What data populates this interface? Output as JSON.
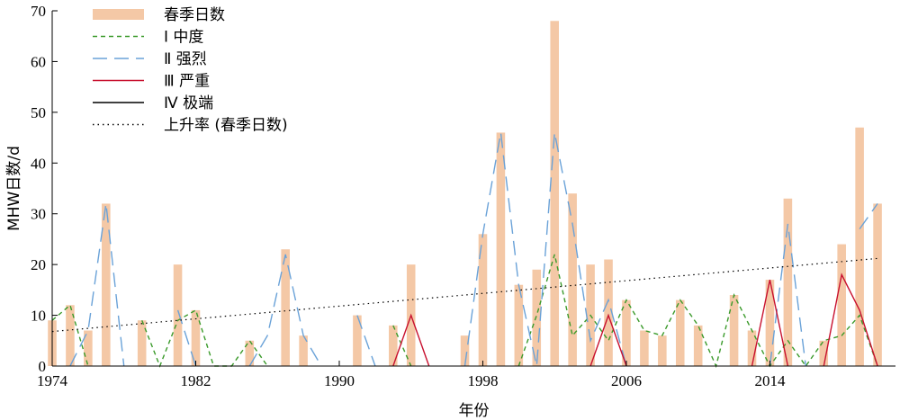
{
  "chart_data": {
    "type": "bar+line",
    "title": "",
    "xlabel": "年份",
    "ylabel": "MHW日数/d",
    "xlim": [
      1974,
      2021
    ],
    "ylim": [
      0,
      70
    ],
    "x_ticks": [
      1974,
      1982,
      1990,
      1998,
      2006,
      2014
    ],
    "y_ticks": [
      0,
      10,
      20,
      30,
      40,
      50,
      60,
      70
    ],
    "grid": false,
    "legend_position": "top-left",
    "years": [
      1974,
      1975,
      1976,
      1977,
      1978,
      1979,
      1980,
      1981,
      1982,
      1983,
      1984,
      1985,
      1986,
      1987,
      1988,
      1989,
      1990,
      1991,
      1992,
      1993,
      1994,
      1995,
      1996,
      1997,
      1998,
      1999,
      2000,
      2001,
      2002,
      2003,
      2004,
      2005,
      2006,
      2007,
      2008,
      2009,
      2010,
      2011,
      2012,
      2013,
      2014,
      2015,
      2016,
      2017,
      2018,
      2019,
      2020
    ],
    "bars": {
      "name": "春季日数",
      "color": "#f4c8a6",
      "values": [
        9,
        12,
        7,
        32,
        0,
        9,
        0,
        20,
        11,
        0,
        0,
        5,
        0,
        23,
        6,
        0,
        0,
        10,
        0,
        8,
        20,
        0,
        0,
        6,
        26,
        46,
        16,
        19,
        68,
        34,
        20,
        21,
        13,
        7,
        6,
        13,
        8,
        0,
        14,
        7,
        17,
        33,
        0,
        5,
        24,
        47,
        32
      ]
    },
    "series": [
      {
        "name": "Ⅰ 中度",
        "style": "dashed",
        "color": "#3a9a2a",
        "values": [
          9,
          12,
          0,
          null,
          null,
          9,
          0,
          9,
          11,
          0,
          0,
          5,
          0,
          null,
          null,
          null,
          null,
          null,
          null,
          8,
          0,
          null,
          null,
          null,
          null,
          null,
          0,
          10,
          22,
          6,
          10,
          5,
          13,
          7,
          6,
          13,
          8,
          0,
          14,
          7,
          0,
          5,
          0,
          5,
          6,
          10,
          0
        ]
      },
      {
        "name": "Ⅱ 强烈",
        "style": "long-dashed",
        "color": "#6aa2d8",
        "values": [
          null,
          0,
          7,
          32,
          0,
          null,
          null,
          11,
          0,
          null,
          null,
          0,
          6,
          22,
          6,
          0,
          null,
          10,
          0,
          null,
          null,
          null,
          null,
          0,
          26,
          46,
          16,
          0,
          46,
          28,
          5,
          13,
          0,
          null,
          null,
          null,
          null,
          null,
          null,
          null,
          0,
          28,
          0,
          null,
          null,
          27,
          32
        ]
      },
      {
        "name": "Ⅲ 严重",
        "style": "solid",
        "color": "#c8102e",
        "values": [
          null,
          null,
          null,
          null,
          null,
          null,
          null,
          null,
          null,
          null,
          null,
          null,
          null,
          null,
          null,
          null,
          null,
          null,
          null,
          0,
          10,
          0,
          null,
          null,
          null,
          null,
          null,
          null,
          null,
          null,
          0,
          10,
          0,
          null,
          null,
          null,
          null,
          null,
          null,
          0,
          17,
          0,
          null,
          0,
          18,
          11,
          0
        ]
      },
      {
        "name": "Ⅳ 极端",
        "style": "solid",
        "color": "#000000",
        "values": []
      }
    ],
    "trend": {
      "name": "上升率 (春季日数)",
      "style": "dotted",
      "color": "#000000",
      "start": [
        1974,
        6.8
      ],
      "end": [
        2020,
        21.2
      ]
    }
  }
}
